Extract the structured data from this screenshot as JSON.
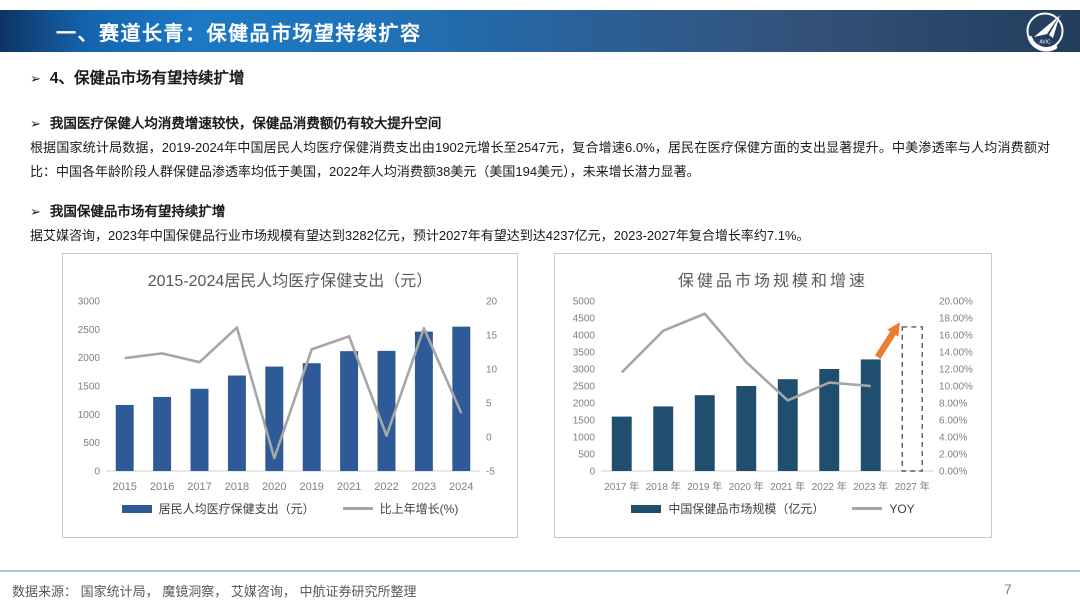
{
  "header": {
    "title": "一、赛道长青：保健品市场望持续扩容",
    "logo_text": "AVIC"
  },
  "content": {
    "bullet_marker": "➢",
    "section_heading": "4、保健品市场有望持续扩增",
    "sub1_heading": "我国医疗保健人均消费增速较快，保健品消费额仍有较大提升空间",
    "para1": "根据国家统计局数据，2019-2024年中国居民人均医疗保健消费支出由1902元增长至2547元，复合增速6.0%，居民在医疗保健方面的支出显著提升。中美渗透率与人均消费额对比：中国各年龄阶段人群保健品渗透率均低于美国，2022年人均消费额38美元（美国194美元），未来增长潜力显著。",
    "sub2_heading": "我国保健品市场有望持续扩增",
    "para2": "据艾媒咨询，2023年中国保健品行业市场规模有望达到3282亿元，预计2027年有望达到达4237亿元，2023-2027年复合增长率约7.1%。"
  },
  "chart_data": [
    {
      "type": "bar+line",
      "title": "2015-2024居民人均医疗保健支出（元）",
      "categories": [
        "2015",
        "2016",
        "2017",
        "2018",
        "2020",
        "2019",
        "2021",
        "2022",
        "2023",
        "2024"
      ],
      "series": [
        {
          "name": "居民人均医疗保健支出（元）",
          "type": "bar",
          "axis": "left",
          "color": "#2e5b97",
          "values": [
            1165,
            1307,
            1451,
            1685,
            1843,
            1902,
            2115,
            2120,
            2460,
            2547
          ]
        },
        {
          "name": "比上年增长(%)",
          "type": "line",
          "axis": "right",
          "color": "#a6a6a6",
          "values": [
            11.6,
            12.3,
            11.0,
            16.1,
            -3.1,
            12.9,
            14.8,
            0.2,
            16.0,
            3.5
          ]
        }
      ],
      "left_axis": {
        "min": 0,
        "max": 3000,
        "step": 500
      },
      "right_axis": {
        "min": -5,
        "max": 20,
        "step": 5
      },
      "legend_position": "bottom",
      "grid": false
    },
    {
      "type": "bar+line",
      "title": "保健品市场规模和增速",
      "categories": [
        "2017 年",
        "2018 年",
        "2019 年",
        "2020 年",
        "2021 年",
        "2022 年",
        "2023 年",
        "2027 年"
      ],
      "series": [
        {
          "name": "中国保健品市场规模（亿元）",
          "type": "bar",
          "axis": "left",
          "color": "#1f4e6e",
          "values": [
            1600,
            1900,
            2230,
            2500,
            2700,
            3000,
            3282,
            4237
          ],
          "forecast_indices": [
            7
          ],
          "forecast_style": "dashed-outline"
        },
        {
          "name": "YOY",
          "type": "line",
          "axis": "right",
          "color": "#a6a6a6",
          "values": [
            11.6,
            16.5,
            18.5,
            12.8,
            8.3,
            10.4,
            10.0,
            null
          ]
        }
      ],
      "left_axis": {
        "min": 0,
        "max": 5000,
        "step": 500
      },
      "right_axis": {
        "min": 0,
        "max": 20,
        "step": 2,
        "format": "percent2"
      },
      "arrow": {
        "color": "#ed7d31",
        "from_index": 6,
        "from_value": 13.4,
        "to_index": 7,
        "to_value": 17.5,
        "meaning": "growth toward 2027 forecast"
      },
      "legend_position": "bottom",
      "grid": false
    }
  ],
  "footer": {
    "source": "数据来源：  国家统计局，  魔镜洞察，  艾媒咨询，  中航证券研究所整理",
    "page": "7"
  }
}
